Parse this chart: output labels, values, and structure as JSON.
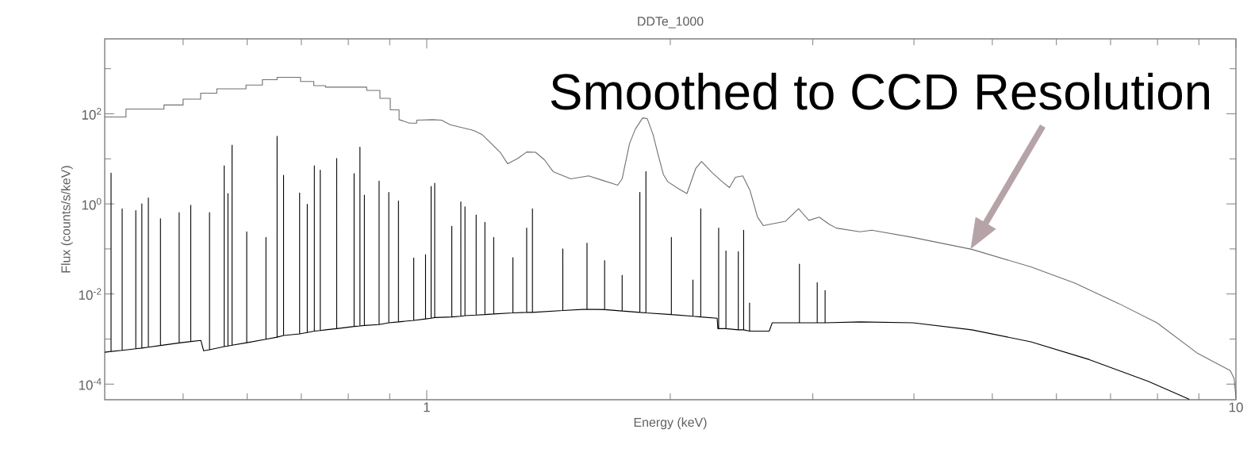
{
  "chart_data": {
    "type": "line",
    "title": "DDTe_1000",
    "xlabel": "Energy (keV)",
    "ylabel": "Flux (counts/s/keV)",
    "log": "xy",
    "xlim": [
      0.4,
      10
    ],
    "ylim": [
      4.5e-05,
      4600
    ],
    "xticks": [
      {
        "value": 0.5,
        "label": null
      },
      {
        "value": 0.6,
        "label": null
      },
      {
        "value": 0.7,
        "label": null
      },
      {
        "value": 0.8,
        "label": null
      },
      {
        "value": 0.9,
        "label": null
      },
      1,
      {
        "value": 2,
        "label": null
      },
      {
        "value": 3,
        "label": null
      },
      {
        "value": 4,
        "label": null
      },
      {
        "value": 5,
        "label": null
      },
      {
        "value": 6,
        "label": null
      },
      {
        "value": 7,
        "label": null
      },
      {
        "value": 8,
        "label": null
      },
      {
        "value": 9,
        "label": null
      },
      10
    ],
    "yticks": [
      {
        "value": 0.0001,
        "label": "10$^{-4}$"
      },
      {
        "value": 0.001,
        "label": null
      },
      {
        "value": 0.01,
        "label": "10$^{-2}$"
      },
      {
        "value": 0.1,
        "label": null
      },
      {
        "value": 1,
        "label": "10$^{0}$"
      },
      {
        "value": 10,
        "label": null
      },
      {
        "value": 100,
        "label": "10$^{2}$"
      },
      {
        "value": 1000,
        "label": null
      }
    ],
    "annotations": [
      {
        "text": "Smoothed to CCD Resolution",
        "x": 4.7,
        "y": 0.1
      }
    ],
    "series": [
      {
        "color": "#707070",
        "x": [
          0.4,
          0.425,
          0.425,
          0.4735,
          0.4735,
          0.5,
          0.5,
          0.5256,
          0.5256,
          0.5503,
          0.5503,
          0.598,
          0.598,
          0.6265,
          0.6265,
          0.6533,
          0.6533,
          0.6984,
          0.6984,
          0.7253,
          0.7253,
          0.75,
          0.75,
          0.843,
          0.843,
          0.8754,
          0.8754,
          0.9015,
          0.9015,
          0.9244,
          0.9244,
          0.952,
          0.972,
          0.972,
          1.017,
          1.043,
          1.069,
          1.143,
          1.172,
          1.202,
          1.233,
          1.259,
          1.296,
          1.329,
          1.363,
          1.398,
          1.433,
          1.507,
          1.585,
          1.652,
          1.722,
          1.744,
          1.781,
          1.811,
          1.849,
          1.873,
          1.905,
          1.929,
          1.961,
          1.986,
          2.053,
          2.097,
          2.15,
          2.186,
          2.251,
          2.318,
          2.367,
          2.407,
          2.458,
          2.51,
          2.563,
          2.606,
          2.775,
          2.881,
          2.967,
          3.055,
          3.146,
          3.209,
          3.432,
          3.548,
          3.99,
          4.716,
          5.58,
          6.326,
          7.17,
          7.99,
          8.97,
          9.84,
          9.95,
          10
        ],
        "values": [
          85,
          85,
          127,
          127,
          157,
          157,
          211,
          211,
          286,
          286,
          357,
          357,
          435,
          435,
          570,
          570,
          644,
          644,
          520,
          520,
          420,
          420,
          390,
          390,
          330,
          330,
          220,
          220,
          122,
          122,
          74,
          62,
          62,
          72,
          74,
          72,
          57,
          42.5,
          34,
          21.7,
          13.8,
          7.8,
          10.2,
          14.2,
          14,
          9.5,
          5.2,
          3.6,
          4.2,
          3.3,
          2.6,
          3.6,
          21.7,
          46,
          81,
          78,
          34,
          13.8,
          4.5,
          3.1,
          2.1,
          1.7,
          6.1,
          8.7,
          5.0,
          3.1,
          2.3,
          3.9,
          4.2,
          1.95,
          0.51,
          0.33,
          0.41,
          0.78,
          0.43,
          0.51,
          0.35,
          0.29,
          0.24,
          0.26,
          0.18,
          0.098,
          0.04,
          0.0174,
          0.0061,
          0.0023,
          0.00048,
          0.0002,
          0.000133,
          5e-05
        ]
      },
      {
        "color": "#000000",
        "x": [
          0.4,
          0.4073,
          0.4073,
          0.4073,
          0.4204,
          0.4204,
          0.4204,
          0.437,
          0.437,
          0.437,
          0.4446,
          0.4446,
          0.4446,
          0.4529,
          0.4529,
          0.4529,
          0.4688,
          0.4688,
          0.4688,
          0.4944,
          0.4944,
          0.4944,
          0.511,
          0.511,
          0.511,
          0.526,
          0.53,
          0.539,
          0.539,
          0.539,
          0.562,
          0.562,
          0.562,
          0.568,
          0.568,
          0.568,
          0.5747,
          0.5747,
          0.5747,
          0.5992,
          0.5992,
          0.5992,
          0.6329,
          0.6329,
          0.6329,
          0.6533,
          0.6533,
          0.6533,
          0.6655,
          0.6655,
          0.6655,
          0.6966,
          0.6966,
          0.6966,
          0.7119,
          0.7119,
          0.7119,
          0.7264,
          0.7264,
          0.7264,
          0.7387,
          0.7387,
          0.7387,
          0.75,
          0.7741,
          0.7741,
          0.7741,
          0.8133,
          0.8133,
          0.8133,
          0.827,
          0.827,
          0.827,
          0.8375,
          0.8375,
          0.8375,
          0.8733,
          0.8733,
          0.8733,
          0.8977,
          0.8977,
          0.8977,
          0.9228,
          0.9228,
          0.9228,
          0.9638,
          0.9638,
          0.9638,
          0.9967,
          0.9967,
          0.9967,
          1.0126,
          1.0126,
          1.0126,
          1.023,
          1.023,
          1.023,
          1.074,
          1.074,
          1.074,
          1.102,
          1.102,
          1.102,
          1.115,
          1.115,
          1.115,
          1.151,
          1.151,
          1.151,
          1.18,
          1.18,
          1.18,
          1.21,
          1.21,
          1.21,
          1.278,
          1.278,
          1.278,
          1.329,
          1.329,
          1.329,
          1.351,
          1.351,
          1.351,
          1.473,
          1.473,
          1.473,
          1.578,
          1.578,
          1.578,
          1.659,
          1.659,
          1.659,
          1.744,
          1.744,
          1.744,
          1.834,
          1.834,
          1.834,
          1.866,
          1.866,
          1.866,
          2.006,
          2.006,
          2.006,
          2.133,
          2.133,
          2.133,
          2.181,
          2.181,
          2.181,
          2.285,
          2.29,
          2.295,
          2.295,
          2.295,
          2.343,
          2.343,
          2.343,
          2.427,
          2.427,
          2.427,
          2.464,
          2.464,
          2.464,
          2.506,
          2.506,
          2.506,
          2.65,
          2.673,
          2.888,
          2.888,
          2.888,
          3.038,
          3.038,
          3.038,
          3.107,
          3.107,
          3.107,
          3.432,
          3.99,
          4.716,
          5.58,
          6.59,
          7.79,
          8.76
        ],
        "values": [
          0.00051,
          0.00053,
          4.8,
          0.00053,
          0.00056,
          0.78,
          0.00056,
          0.00061,
          0.71,
          0.00061,
          0.00063,
          1.0,
          0.00063,
          0.00066,
          1.35,
          0.00066,
          0.00072,
          0.47,
          0.00072,
          0.00082,
          0.64,
          0.00082,
          0.00088,
          0.93,
          0.00088,
          0.00093,
          0.00055,
          0.00058,
          0.64,
          0.00058,
          0.00068,
          7.0,
          0.00068,
          0.0007,
          1.7,
          0.0007,
          0.00073,
          20,
          0.00073,
          0.00083,
          0.24,
          0.00083,
          0.00099,
          0.18,
          0.00099,
          0.0011,
          31.6,
          0.0011,
          0.0012,
          4.3,
          0.0012,
          0.0013,
          1.74,
          0.0013,
          0.0014,
          0.98,
          0.0014,
          0.0015,
          7.0,
          0.0015,
          0.00155,
          5.6,
          0.00155,
          0.0016,
          0.0017,
          10.2,
          0.0017,
          0.0019,
          4.7,
          0.0019,
          0.00195,
          18.1,
          0.00195,
          0.002,
          1.57,
          0.002,
          0.0021,
          3.2,
          0.0021,
          0.0023,
          1.8,
          0.0023,
          0.0024,
          1.16,
          0.0024,
          0.0026,
          0.063,
          0.0026,
          0.0028,
          0.075,
          0.0028,
          0.0029,
          2.45,
          0.0029,
          0.003,
          2.86,
          0.003,
          0.0031,
          0.32,
          0.0031,
          0.0032,
          1.11,
          0.0032,
          0.0033,
          0.86,
          0.0033,
          0.0034,
          0.57,
          0.0034,
          0.0035,
          0.39,
          0.0035,
          0.0036,
          0.18,
          0.0036,
          0.0038,
          0.064,
          0.0038,
          0.0039,
          0.29,
          0.0039,
          0.0039,
          0.78,
          0.0039,
          0.0043,
          0.1,
          0.0043,
          0.0046,
          0.135,
          0.0046,
          0.0045,
          0.055,
          0.0045,
          0.0042,
          0.026,
          0.0042,
          0.0039,
          1.8,
          0.0039,
          0.0038,
          5.2,
          0.0038,
          0.0035,
          0.18,
          0.0035,
          0.0032,
          0.0205,
          0.0032,
          0.0031,
          0.78,
          0.0031,
          0.0029,
          0.0017,
          0.0017,
          0.29,
          0.0017,
          0.0017,
          0.091,
          0.0017,
          0.0016,
          0.087,
          0.0016,
          0.0016,
          0.26,
          0.0016,
          0.0015,
          0.0063,
          0.0015,
          0.0015,
          0.0023,
          0.0023,
          0.046,
          0.0023,
          0.0023,
          0.018,
          0.0023,
          0.0023,
          0.012,
          0.0023,
          0.0024,
          0.0023,
          0.0016,
          0.00087,
          0.00035,
          0.000115,
          4.6e-05
        ]
      }
    ]
  }
}
